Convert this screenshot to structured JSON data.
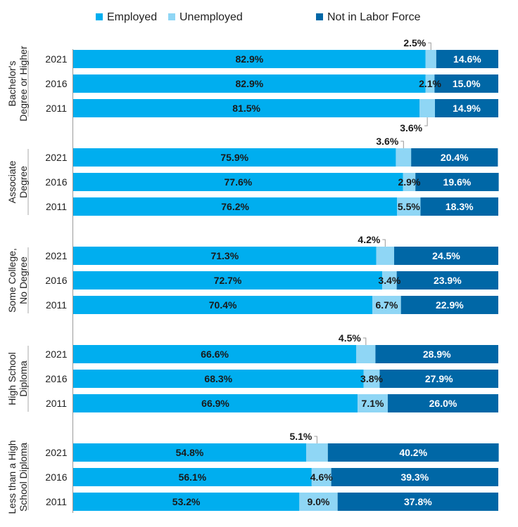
{
  "chart_data": {
    "type": "bar",
    "orientation": "horizontal",
    "stacked": true,
    "xlim": [
      0,
      100
    ],
    "unit": "%",
    "legend_placement": "top",
    "legend": [
      "Employed",
      "Unemployed",
      "Not in Labor Force"
    ],
    "colors": {
      "Employed": "#00aeef",
      "Unemployed": "#8fd6f5",
      "Not in Labor Force": "#0067a6"
    },
    "groups": [
      {
        "label": [
          "Bachelor's",
          "Degree or Higher"
        ],
        "rows": [
          {
            "year": "2021",
            "values": [
              82.9,
              2.5,
              14.6
            ],
            "labels": [
              "82.9%",
              "2.5%",
              "14.6%"
            ],
            "callout": "above"
          },
          {
            "year": "2016",
            "values": [
              82.9,
              2.1,
              15.0
            ],
            "labels": [
              "82.9%",
              "2.1%",
              "15.0%"
            ],
            "callout": null
          },
          {
            "year": "2011",
            "values": [
              81.5,
              3.6,
              14.9
            ],
            "labels": [
              "81.5%",
              "3.6%",
              "14.9%"
            ],
            "callout": "below"
          }
        ]
      },
      {
        "label": [
          "Associate",
          "Degree"
        ],
        "rows": [
          {
            "year": "2021",
            "values": [
              75.9,
              3.6,
              20.4
            ],
            "labels": [
              "75.9%",
              "3.6%",
              "20.4%"
            ],
            "callout": "above"
          },
          {
            "year": "2016",
            "values": [
              77.6,
              2.9,
              19.6
            ],
            "labels": [
              "77.6%",
              "2.9%",
              "19.6%"
            ],
            "callout": null
          },
          {
            "year": "2011",
            "values": [
              76.2,
              5.5,
              18.3
            ],
            "labels": [
              "76.2%",
              "5.5%",
              "18.3%"
            ],
            "callout": null
          }
        ]
      },
      {
        "label": [
          "Some College,",
          "No Degree"
        ],
        "rows": [
          {
            "year": "2021",
            "values": [
              71.3,
              4.2,
              24.5
            ],
            "labels": [
              "71.3%",
              "4.2%",
              "24.5%"
            ],
            "callout": "above"
          },
          {
            "year": "2016",
            "values": [
              72.7,
              3.4,
              23.9
            ],
            "labels": [
              "72.7%",
              "3.4%",
              "23.9%"
            ],
            "callout": null
          },
          {
            "year": "2011",
            "values": [
              70.4,
              6.7,
              22.9
            ],
            "labels": [
              "70.4%",
              "6.7%",
              "22.9%"
            ],
            "callout": null
          }
        ]
      },
      {
        "label": [
          "High School",
          "Diploma"
        ],
        "rows": [
          {
            "year": "2021",
            "values": [
              66.6,
              4.5,
              28.9
            ],
            "labels": [
              "66.6%",
              "4.5%",
              "28.9%"
            ],
            "callout": "above"
          },
          {
            "year": "2016",
            "values": [
              68.3,
              3.8,
              27.9
            ],
            "labels": [
              "68.3%",
              "3.8%",
              "27.9%"
            ],
            "callout": null
          },
          {
            "year": "2011",
            "values": [
              66.9,
              7.1,
              26.0
            ],
            "labels": [
              "66.9%",
              "7.1%",
              "26.0%"
            ],
            "callout": null
          }
        ]
      },
      {
        "label": [
          "Less than a High",
          "School Diploma"
        ],
        "rows": [
          {
            "year": "2021",
            "values": [
              54.8,
              5.1,
              40.2
            ],
            "labels": [
              "54.8%",
              "5.1%",
              "40.2%"
            ],
            "callout": "above"
          },
          {
            "year": "2016",
            "values": [
              56.1,
              4.6,
              39.3
            ],
            "labels": [
              "56.1%",
              "4.6%",
              "39.3%"
            ],
            "callout": null
          },
          {
            "year": "2011",
            "values": [
              53.2,
              9.0,
              37.8
            ],
            "labels": [
              "53.2%",
              "9.0%",
              "37.8%"
            ],
            "callout": null
          }
        ]
      }
    ]
  }
}
